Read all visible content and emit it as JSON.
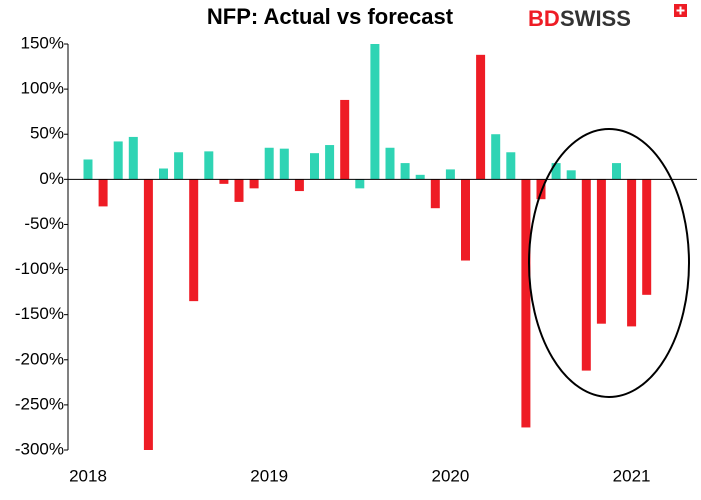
{
  "chart_data": {
    "type": "bar",
    "title": "NFP:  Actual vs forecast",
    "logo": [
      "BD",
      "SWISS"
    ],
    "categories": [
      "2018",
      null,
      null,
      null,
      null,
      null,
      null,
      null,
      null,
      null,
      null,
      null,
      "2019",
      null,
      null,
      null,
      null,
      null,
      null,
      null,
      null,
      null,
      null,
      null,
      "2020",
      null,
      null,
      null,
      null,
      null,
      null,
      null,
      null,
      null,
      null,
      null,
      "2021",
      null
    ],
    "values": [
      22,
      -30,
      42,
      47,
      -300,
      12,
      30,
      -135,
      31,
      -5,
      -25,
      -10,
      35,
      34,
      -13,
      29,
      38,
      88,
      -10,
      150,
      35,
      18,
      5,
      -32,
      11,
      -90,
      138,
      50,
      30,
      -275,
      -22,
      18,
      10,
      -212,
      -160,
      18,
      -163,
      -128
    ],
    "colors": [
      "#2fd4b4",
      "#ee1c25",
      "#2fd4b4",
      "#2fd4b4",
      "#ee1c25",
      "#2fd4b4",
      "#2fd4b4",
      "#ee1c25",
      "#2fd4b4",
      "#ee1c25",
      "#ee1c25",
      "#ee1c25",
      "#2fd4b4",
      "#2fd4b4",
      "#ee1c25",
      "#2fd4b4",
      "#2fd4b4",
      "#ee1c25",
      "#2fd4b4",
      "#2fd4b4",
      "#2fd4b4",
      "#2fd4b4",
      "#2fd4b4",
      "#ee1c25",
      "#2fd4b4",
      "#ee1c25",
      "#ee1c25",
      "#2fd4b4",
      "#2fd4b4",
      "#ee1c25",
      "#ee1c25",
      "#2fd4b4",
      "#2fd4b4",
      "#ee1c25",
      "#ee1c25",
      "#2fd4b4",
      "#ee1c25",
      "#ee1c25"
    ],
    "ylim": [
      -300,
      150
    ],
    "yticks": [
      {
        "value": -300,
        "label": "-300%"
      },
      {
        "value": -250,
        "label": "-250%"
      },
      {
        "value": -200,
        "label": "-200%"
      },
      {
        "value": -150,
        "label": "-150%"
      },
      {
        "value": -100,
        "label": "-100%"
      },
      {
        "value": -50,
        "label": "-50%"
      },
      {
        "value": 0,
        "label": "0%"
      },
      {
        "value": 50,
        "label": "50%"
      },
      {
        "value": 100,
        "label": "100%"
      },
      {
        "value": 150,
        "label": "150%"
      }
    ],
    "grid": false
  }
}
